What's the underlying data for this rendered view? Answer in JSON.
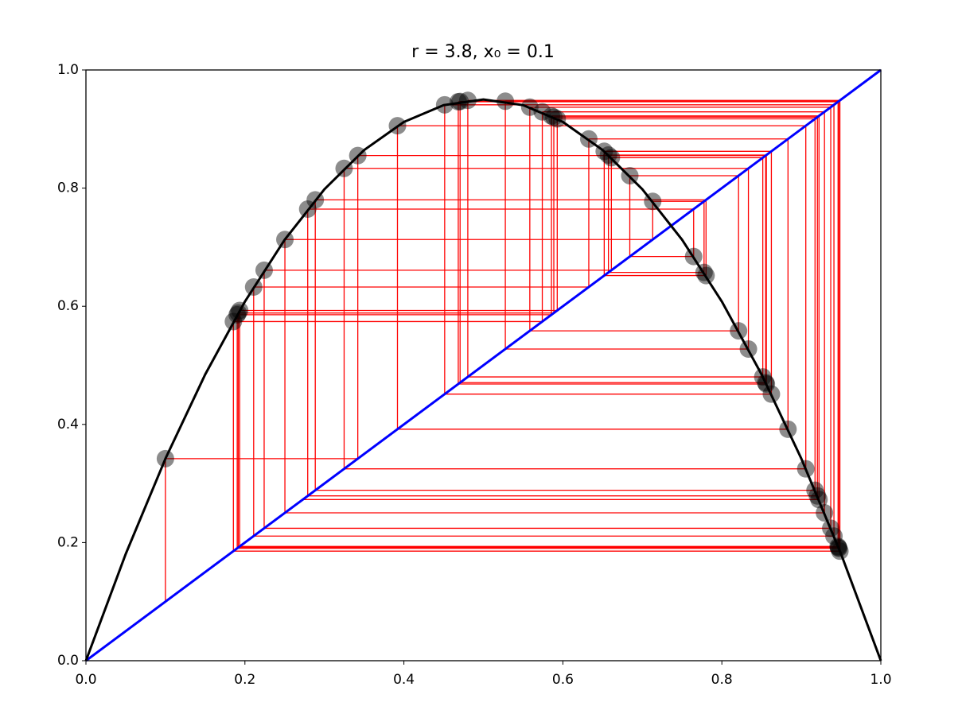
{
  "chart_data": {
    "type": "cobweb",
    "title": "r = 3.8, x₀ = 0.1",
    "xlim": [
      0,
      1
    ],
    "ylim": [
      0,
      1
    ],
    "xticks": [
      {
        "value": 0,
        "label": "0.0"
      },
      {
        "value": 0.2,
        "label": "0.2"
      },
      {
        "value": 0.4,
        "label": "0.4"
      },
      {
        "value": 0.6,
        "label": "0.6"
      },
      {
        "value": 0.8,
        "label": "0.8"
      },
      {
        "value": 1,
        "label": "1.0"
      }
    ],
    "yticks": [
      {
        "value": 0,
        "label": "0.0"
      },
      {
        "value": 0.2,
        "label": "0.2"
      },
      {
        "value": 0.4,
        "label": "0.4"
      },
      {
        "value": 0.6,
        "label": "0.6"
      },
      {
        "value": 0.8,
        "label": "0.8"
      },
      {
        "value": 1,
        "label": "1.0"
      }
    ],
    "curve": {
      "color": "#000000",
      "x": [
        0,
        0.05,
        0.1,
        0.15,
        0.2,
        0.25,
        0.3,
        0.35,
        0.4,
        0.45,
        0.5,
        0.55,
        0.6,
        0.65,
        0.7,
        0.75,
        0.8,
        0.85,
        0.9,
        0.95,
        1
      ],
      "y": [
        0,
        0.1805,
        0.342,
        0.4845,
        0.608,
        0.7125,
        0.798,
        0.8645,
        0.912,
        0.9405,
        0.95,
        0.9405,
        0.912,
        0.8645,
        0.798,
        0.7125,
        0.608,
        0.4845,
        0.342,
        0.1805,
        0
      ]
    },
    "diagonal": {
      "color": "#0000ff",
      "x": [
        0,
        1
      ],
      "y": [
        0,
        1
      ]
    },
    "cobweb_color": "#ff0000",
    "point_color": "#000000",
    "orbit": [
      0.1,
      0.342,
      0.8551,
      0.4707,
      0.9467,
      0.1916,
      0.5886,
      0.9202,
      0.279,
      0.7645,
      0.6842,
      0.821,
      0.5584,
      0.937,
      0.2242,
      0.661,
      0.8515,
      0.4804,
      0.9485,
      0.1855,
      0.5741,
      0.9291,
      0.2503,
      0.713,
      0.7776,
      0.6573,
      0.856,
      0.4684,
      0.9462,
      0.1934,
      0.5929,
      0.9172,
      0.2885,
      0.7801,
      0.652,
      0.8623,
      0.4513,
      0.941,
      0.211,
      0.6326,
      0.8832,
      0.3919,
      0.9056,
      0.3248,
      0.8334,
      0.5276,
      0.9471,
      0.1903,
      0.5856,
      0.9222,
      0.2728
    ]
  }
}
